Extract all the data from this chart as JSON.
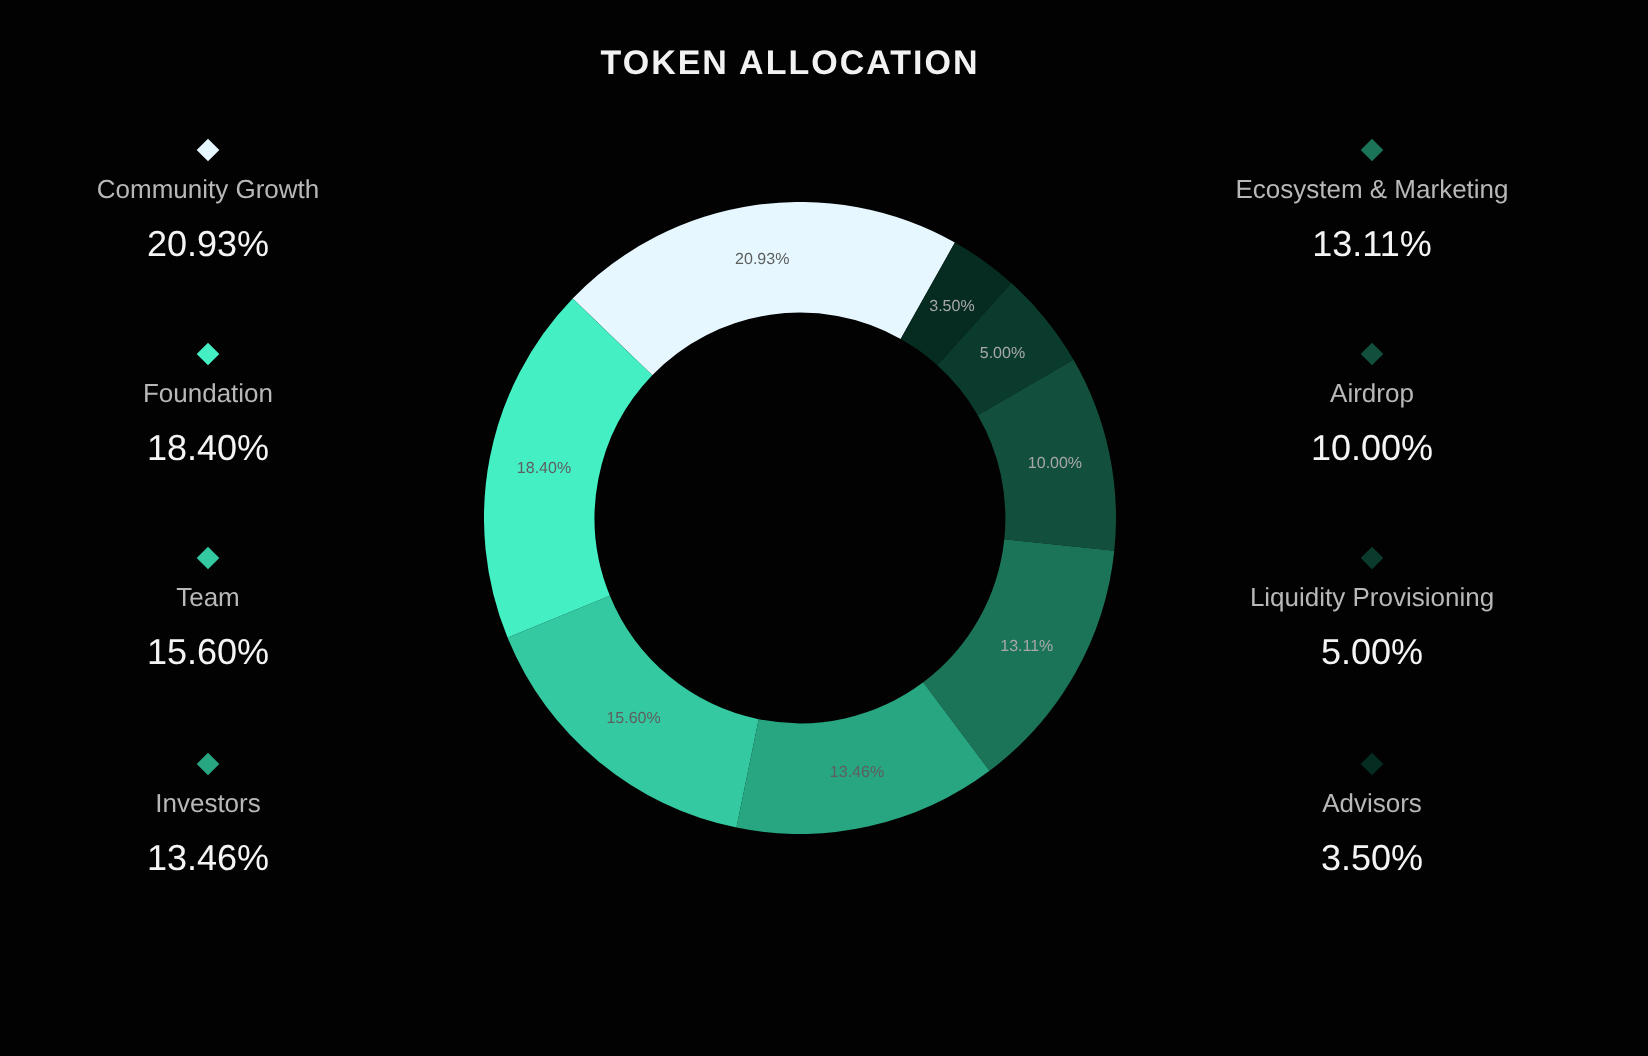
{
  "chart_data": {
    "type": "donut",
    "title": "TOKEN ALLOCATION",
    "categories": [
      "Community Growth",
      "Advisors",
      "Liquidity Provisioning",
      "Airdrop",
      "Ecosystem & Marketing",
      "Investors",
      "Team",
      "Foundation"
    ],
    "values": [
      20.93,
      3.5,
      5,
      10,
      13.11,
      13.46,
      15.6,
      18.4
    ],
    "value_labels": [
      "20.93%",
      "3.50%",
      "5.00%",
      "10.00%",
      "13.11%",
      "13.46%",
      "15.60%",
      "18.40%"
    ],
    "colors": [
      "#e6f7ff",
      "#062c21",
      "#0b3b2d",
      "#12503d",
      "#1c7458",
      "#28a581",
      "#35c9a1",
      "#45efc4"
    ],
    "legend": "left"
  }
}
